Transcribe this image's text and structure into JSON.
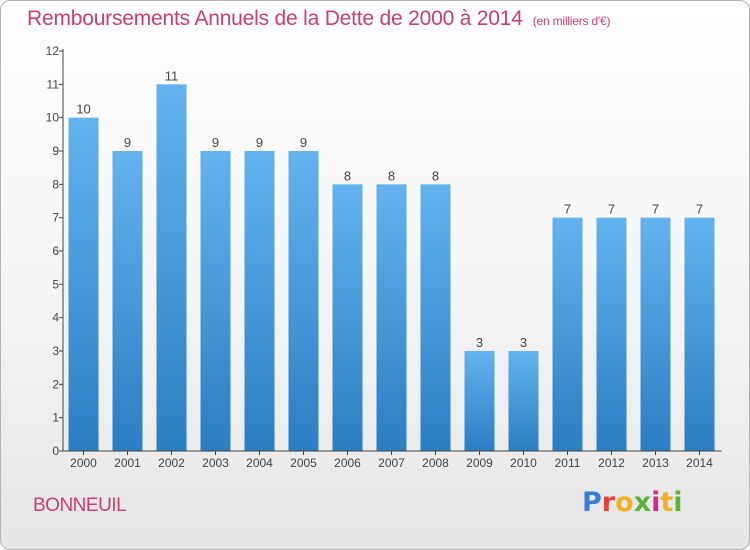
{
  "header": {
    "title": "Remboursements Annuels de la Dette de 2000 à 2014",
    "unit": "(en milliers d'€)"
  },
  "footer": {
    "commune": "BONNEUIL",
    "logo_text": "Proxiti"
  },
  "colors": {
    "title": "#cc3f6d",
    "bar_top": "#63b3ef",
    "bar_bottom": "#2a7ec2"
  },
  "chart_data": {
    "type": "bar",
    "title": "Remboursements Annuels de la Dette de 2000 à 2014",
    "xlabel": "",
    "ylabel": "",
    "categories": [
      "2000",
      "2001",
      "2002",
      "2003",
      "2004",
      "2005",
      "2006",
      "2007",
      "2008",
      "2009",
      "2010",
      "2011",
      "2012",
      "2013",
      "2014"
    ],
    "values": [
      10,
      9,
      11,
      9,
      9,
      9,
      8,
      8,
      8,
      3,
      3,
      7,
      7,
      7,
      7
    ],
    "data_labels": [
      "10",
      "9",
      "11",
      "9",
      "9",
      "9",
      "8",
      "8",
      "8",
      "3",
      "3",
      "7",
      "7",
      "7",
      "7"
    ],
    "ylim": [
      0,
      12
    ],
    "yticks": [
      0,
      1,
      2,
      3,
      4,
      5,
      6,
      7,
      8,
      9,
      10,
      11,
      12
    ],
    "grid": false
  }
}
